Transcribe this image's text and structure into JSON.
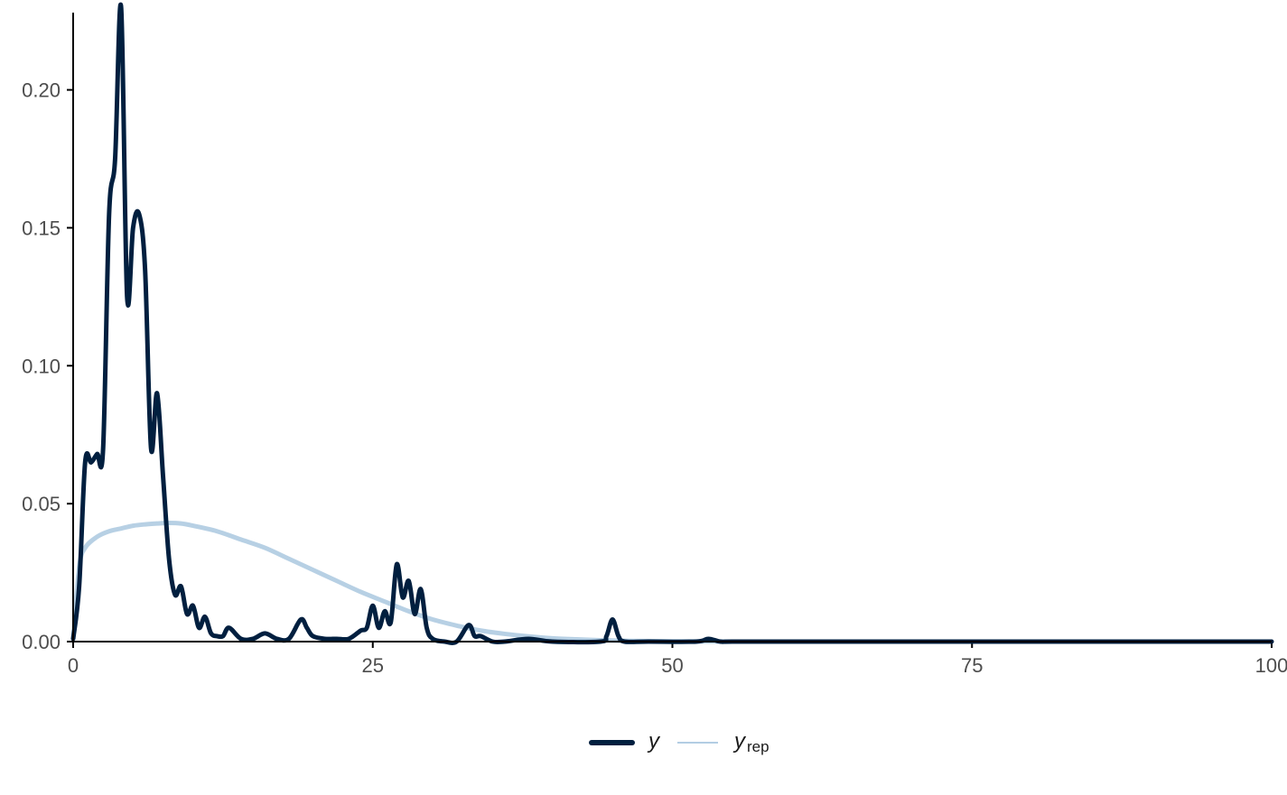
{
  "chart_data": {
    "type": "line",
    "title": "",
    "xlabel": "",
    "ylabel": "",
    "xlim": [
      0,
      100
    ],
    "ylim": [
      0,
      0.228
    ],
    "x_ticks": [
      0,
      25,
      50,
      75,
      100
    ],
    "x_tick_labels": [
      "0",
      "25",
      "50",
      "75",
      "100"
    ],
    "y_ticks": [
      0,
      0.05,
      0.1,
      0.15,
      0.2
    ],
    "y_tick_labels": [
      "0.00",
      "0.05",
      "0.10",
      "0.15",
      "0.20"
    ],
    "grid": false,
    "legend_position": "bottom",
    "legend": [
      {
        "key": "y",
        "label": "y",
        "sub": ""
      },
      {
        "key": "yrep",
        "label": "y",
        "sub": "rep"
      }
    ],
    "colors": {
      "y": "#011f3f",
      "yrep": "#b3cde3",
      "axis": "#000000"
    },
    "series": [
      {
        "name": "y",
        "x": [
          0,
          0.5,
          1,
          1.5,
          2,
          2.5,
          3,
          3.5,
          4,
          4.5,
          5,
          5.5,
          6,
          6.5,
          7,
          7.5,
          8,
          8.5,
          9,
          9.5,
          10,
          10.5,
          11,
          11.5,
          12,
          12.5,
          13,
          14,
          15,
          16,
          17,
          18,
          19,
          19.5,
          20,
          21,
          22,
          23,
          24,
          24.5,
          25,
          25.5,
          26,
          26.5,
          27,
          27.5,
          28,
          28.5,
          29,
          29.5,
          30,
          31,
          32,
          33,
          33.5,
          34,
          35,
          36,
          38,
          40,
          44,
          44.5,
          45,
          45.5,
          46,
          48,
          52,
          53,
          54,
          55,
          60,
          70,
          80,
          90,
          100
        ],
        "values": [
          0.001,
          0.02,
          0.065,
          0.065,
          0.068,
          0.07,
          0.155,
          0.175,
          0.23,
          0.125,
          0.15,
          0.155,
          0.135,
          0.07,
          0.09,
          0.06,
          0.03,
          0.017,
          0.02,
          0.01,
          0.013,
          0.005,
          0.009,
          0.003,
          0.002,
          0.002,
          0.005,
          0.001,
          0.001,
          0.003,
          0.001,
          0.001,
          0.008,
          0.005,
          0.002,
          0.001,
          0.001,
          0.001,
          0.004,
          0.005,
          0.013,
          0.005,
          0.011,
          0.007,
          0.028,
          0.016,
          0.022,
          0.01,
          0.019,
          0.005,
          0.001,
          0.0,
          0.0,
          0.006,
          0.002,
          0.002,
          0.0,
          0.0,
          0.001,
          0.0,
          0.0,
          0.002,
          0.008,
          0.002,
          0.0,
          0.0,
          0.0,
          0.001,
          0.0,
          0.0,
          0.0,
          0.0,
          0.0,
          0.0,
          0.0
        ]
      },
      {
        "name": "yrep",
        "x": [
          0,
          0.5,
          1,
          2,
          3,
          4,
          5,
          6,
          7,
          8,
          9,
          10,
          12,
          14,
          16,
          18,
          20,
          22,
          24,
          26,
          28,
          30,
          32,
          34,
          36,
          38,
          40,
          42,
          44,
          46,
          50,
          55,
          60,
          70,
          80,
          90,
          100
        ],
        "values": [
          0.001,
          0.027,
          0.034,
          0.038,
          0.04,
          0.041,
          0.042,
          0.0425,
          0.0428,
          0.043,
          0.0428,
          0.042,
          0.04,
          0.037,
          0.034,
          0.03,
          0.026,
          0.022,
          0.018,
          0.0145,
          0.011,
          0.008,
          0.0058,
          0.004,
          0.0028,
          0.0019,
          0.0012,
          0.0008,
          0.0005,
          0.0003,
          0.0001,
          0.0,
          0.0,
          0.0,
          0.0,
          0.0,
          0.0
        ]
      }
    ]
  }
}
